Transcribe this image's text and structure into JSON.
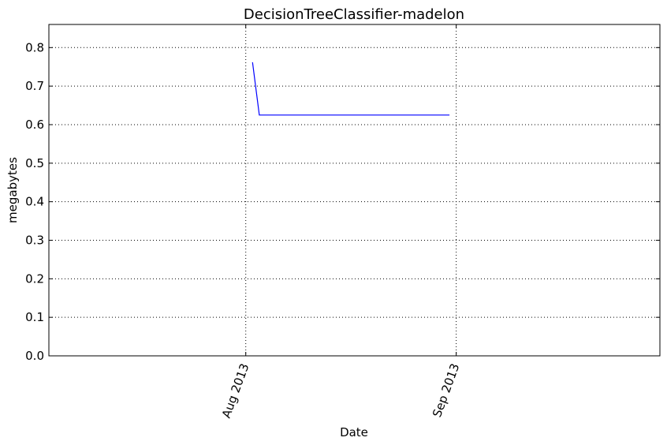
{
  "chart_data": {
    "type": "line",
    "title": "DecisionTreeClassifier-madelon",
    "xlabel": "Date",
    "ylabel": "megabytes",
    "xlim": [
      "2013-07-03",
      "2013-10-01"
    ],
    "ylim": [
      0,
      0.86
    ],
    "yticks": [
      0.0,
      0.1,
      0.2,
      0.3,
      0.4,
      0.5,
      0.6,
      0.7,
      0.8
    ],
    "ytick_labels": [
      "0.0",
      "0.1",
      "0.2",
      "0.3",
      "0.4",
      "0.5",
      "0.6",
      "0.7",
      "0.8"
    ],
    "xticks": [
      "2013-08-01",
      "2013-09-01"
    ],
    "xtick_labels": [
      "Aug 2013",
      "Sep 2013"
    ],
    "grid": true,
    "series": [
      {
        "color": "#0000ff",
        "x": [
          "2013-08-02",
          "2013-08-03",
          "2013-08-31"
        ],
        "y": [
          0.762,
          0.625,
          0.625
        ]
      }
    ]
  }
}
